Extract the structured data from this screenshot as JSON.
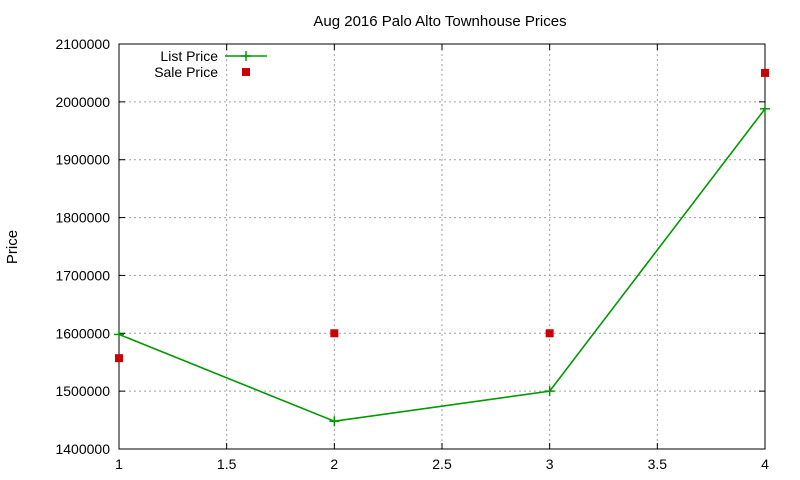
{
  "chart_data": {
    "type": "line",
    "title": "Aug 2016 Palo Alto Townhouse Prices",
    "xlabel": "",
    "ylabel": "Price",
    "xlim": [
      1,
      4
    ],
    "ylim": [
      1400000,
      2100000
    ],
    "x_ticks": [
      1,
      1.5,
      2,
      2.5,
      3,
      3.5,
      4
    ],
    "x_tick_labels": [
      "1",
      "1.5",
      "2",
      "2.5",
      "3",
      "3.5",
      "4"
    ],
    "y_ticks": [
      1400000,
      1500000,
      1600000,
      1700000,
      1800000,
      1900000,
      2000000,
      2100000
    ],
    "y_tick_labels": [
      "1400000",
      "1500000",
      "1600000",
      "1700000",
      "1800000",
      "1900000",
      "2000000",
      "2100000"
    ],
    "grid": true,
    "legend_position": "top-left",
    "series": [
      {
        "name": "List Price",
        "style": "line with plus markers",
        "color": "#009900",
        "x": [
          1,
          2,
          3,
          4
        ],
        "y": [
          1598000,
          1448000,
          1500000,
          1988000
        ]
      },
      {
        "name": "Sale Price",
        "style": "square markers",
        "color": "#cc0000",
        "x": [
          1,
          2,
          3,
          4
        ],
        "y": [
          1557000,
          1600000,
          1600000,
          2050000
        ]
      }
    ]
  }
}
